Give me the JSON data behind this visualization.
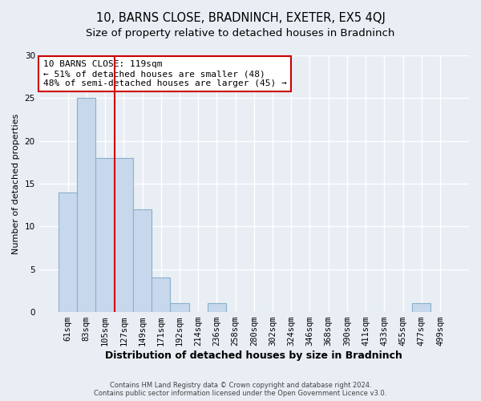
{
  "title": "10, BARNS CLOSE, BRADNINCH, EXETER, EX5 4QJ",
  "subtitle": "Size of property relative to detached houses in Bradninch",
  "xlabel": "Distribution of detached houses by size in Bradninch",
  "ylabel": "Number of detached properties",
  "footer_line1": "Contains HM Land Registry data © Crown copyright and database right 2024.",
  "footer_line2": "Contains public sector information licensed under the Open Government Licence v3.0.",
  "bar_labels": [
    "61sqm",
    "83sqm",
    "105sqm",
    "127sqm",
    "149sqm",
    "171sqm",
    "192sqm",
    "214sqm",
    "236sqm",
    "258sqm",
    "280sqm",
    "302sqm",
    "324sqm",
    "346sqm",
    "368sqm",
    "390sqm",
    "411sqm",
    "433sqm",
    "455sqm",
    "477sqm",
    "499sqm"
  ],
  "bar_values": [
    14,
    25,
    18,
    18,
    12,
    4,
    1,
    0,
    1,
    0,
    0,
    0,
    0,
    0,
    0,
    0,
    0,
    0,
    0,
    1,
    0
  ],
  "bar_color": "#c8d8ec",
  "bar_edge_color": "#8ab0cc",
  "vline_x": 2.5,
  "vline_color": "#cc0000",
  "annotation_title": "10 BARNS CLOSE: 119sqm",
  "annotation_line1": "← 51% of detached houses are smaller (48)",
  "annotation_line2": "48% of semi-detached houses are larger (45) →",
  "annotation_box_color": "#ffffff",
  "annotation_box_edge_color": "#cc0000",
  "ylim": [
    0,
    30
  ],
  "yticks": [
    0,
    5,
    10,
    15,
    20,
    25,
    30
  ],
  "background_color": "#e8eef4",
  "plot_background_color": "#e8eef4",
  "grid_color": "#ffffff",
  "title_fontsize": 10.5,
  "subtitle_fontsize": 9.5,
  "ylabel_fontsize": 8,
  "xlabel_fontsize": 9,
  "tick_fontsize": 7.5,
  "footer_fontsize": 6,
  "annotation_fontsize": 8
}
